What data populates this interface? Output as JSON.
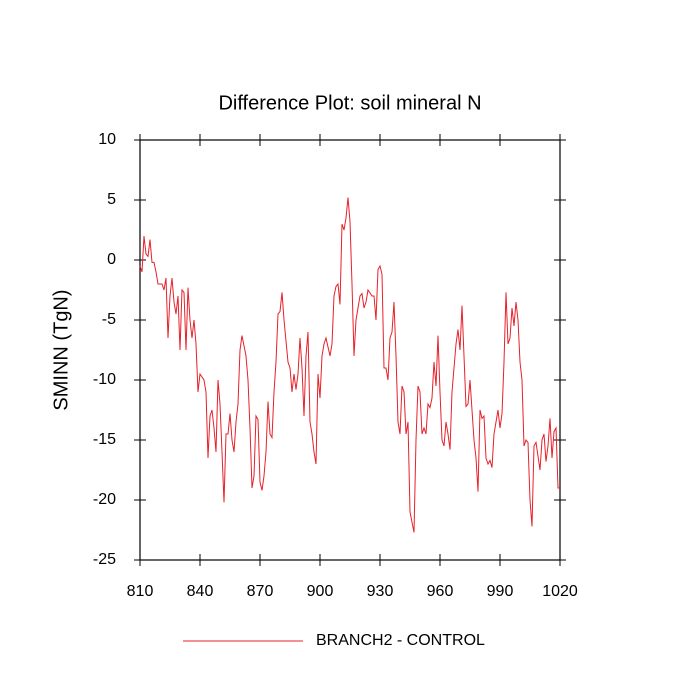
{
  "chart_data": {
    "type": "line",
    "title": "Difference Plot: soil mineral N",
    "y_label": "SMINN  (TgN)",
    "xlim": [
      810,
      1020
    ],
    "xticks": [
      810,
      840,
      870,
      900,
      930,
      960,
      990,
      1020
    ],
    "ylim": [
      -25,
      10
    ],
    "yticks": [
      -25,
      -20,
      -15,
      -10,
      -5,
      0,
      5,
      10
    ],
    "x": [
      810,
      811,
      812,
      813,
      814,
      815,
      816,
      817,
      818,
      819,
      821,
      822,
      823,
      824,
      825,
      826,
      827,
      828,
      829,
      830,
      831,
      832,
      833,
      834,
      835,
      836,
      837,
      838,
      839,
      840,
      842,
      843,
      844,
      845,
      846,
      847,
      848,
      849,
      850,
      851,
      852,
      853,
      854,
      855,
      856,
      857,
      858,
      859,
      860,
      861,
      863,
      864,
      865,
      866,
      867,
      868,
      869,
      870,
      871,
      872,
      873,
      874,
      875,
      876,
      877,
      878,
      879,
      880,
      881,
      882,
      884,
      885,
      886,
      887,
      888,
      889,
      890,
      891,
      892,
      893,
      894,
      895,
      896,
      897,
      898,
      899,
      900,
      901,
      902,
      903,
      905,
      906,
      907,
      908,
      909,
      910,
      911,
      912,
      913,
      914,
      915,
      916,
      917,
      918,
      919,
      920,
      921,
      922,
      923,
      924,
      926,
      927,
      928,
      929,
      930,
      931,
      932,
      933,
      934,
      935,
      936,
      937,
      938,
      939,
      940,
      941,
      942,
      943,
      944,
      945,
      947,
      948,
      949,
      950,
      951,
      952,
      953,
      954,
      955,
      956,
      957,
      958,
      959,
      960,
      961,
      962,
      963,
      964,
      965,
      966,
      968,
      969,
      970,
      971,
      972,
      973,
      974,
      975,
      976,
      977,
      978,
      979,
      980,
      981,
      982,
      983,
      984,
      985,
      986,
      987,
      989,
      990,
      991,
      992,
      993,
      994,
      995,
      996,
      997,
      998,
      999,
      1000,
      1001,
      1002,
      1003,
      1004,
      1005,
      1006,
      1007,
      1008,
      1010,
      1011,
      1012,
      1013,
      1014,
      1015,
      1016,
      1017,
      1018,
      1019,
      1020
    ],
    "series": [
      {
        "name": "BRANCH2 - CONTROL",
        "color": "#e8202a",
        "values": [
          -0.5,
          -1,
          2,
          0.5,
          0.3,
          1.7,
          -0.2,
          -0.2,
          -1,
          -2,
          -2,
          -2.5,
          -1.5,
          -6.5,
          -3,
          -1.5,
          -3.5,
          -4.5,
          -3,
          -7.5,
          -2.5,
          -2.7,
          -7.5,
          -2.3,
          -5,
          -6.5,
          -5,
          -7,
          -11,
          -9.5,
          -10,
          -11,
          -16.5,
          -13,
          -12.5,
          -14,
          -16,
          -10,
          -12,
          -16,
          -20.2,
          -14.5,
          -14.5,
          -12.8,
          -15,
          -16,
          -13.5,
          -12,
          -7.5,
          -6.3,
          -8,
          -10,
          -14,
          -19,
          -18,
          -13,
          -13.3,
          -18.5,
          -19.2,
          -18,
          -16,
          -11.8,
          -14.5,
          -14.8,
          -11,
          -8.5,
          -4.5,
          -4.3,
          -2.7,
          -5,
          -8.5,
          -9,
          -11,
          -9.5,
          -10.8,
          -9.5,
          -6.5,
          -9,
          -13,
          -8,
          -6,
          -13.5,
          -14.5,
          -16,
          -17,
          -9.5,
          -11.5,
          -8,
          -7,
          -6.5,
          -8,
          -7,
          -3,
          -2.2,
          -2,
          -3.7,
          3,
          2.5,
          3.5,
          5.2,
          3.2,
          -2,
          -8,
          -5,
          -4,
          -3,
          -2.8,
          -4,
          -3.5,
          -2.5,
          -3,
          -3,
          -5,
          -0.8,
          -0.5,
          -1.2,
          -9,
          -9,
          -10,
          -6.5,
          -6,
          -3.5,
          -8,
          -13.5,
          -14.5,
          -10.5,
          -11,
          -14.5,
          -13.5,
          -21,
          -22.7,
          -15,
          -10.5,
          -11,
          -14.5,
          -14,
          -14.5,
          -12,
          -12.3,
          -11.5,
          -8.5,
          -10.5,
          -6.3,
          -11,
          -15,
          -15.5,
          -13.5,
          -14.5,
          -15.8,
          -11,
          -7,
          -5.8,
          -7.5,
          -3.8,
          -8,
          -12.2,
          -12,
          -10,
          -12.5,
          -15,
          -16.5,
          -19.3,
          -12.5,
          -13.2,
          -13,
          -16.5,
          -17,
          -16.7,
          -17.3,
          -14.5,
          -12.5,
          -14,
          -12.8,
          -8.5,
          -2.7,
          -7,
          -6.5,
          -4,
          -5.5,
          -3.5,
          -5,
          -8.5,
          -10,
          -15.5,
          -15,
          -15.2,
          -20,
          -22.2,
          -15.5,
          -15.2,
          -17.5,
          -15,
          -14.5,
          -16.8,
          -15.5,
          -13.2,
          -16.5,
          -14.3,
          -14,
          -19,
          -19
        ]
      }
    ]
  }
}
